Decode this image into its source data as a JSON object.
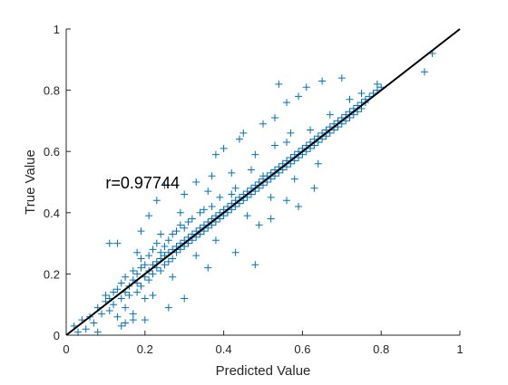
{
  "chart_data": {
    "type": "scatter",
    "title": "",
    "xlabel": "Predicted Value",
    "ylabel": "True Value",
    "xlim": [
      0,
      1
    ],
    "ylim": [
      0,
      1
    ],
    "xticks": [
      "0",
      "0.2",
      "0.4",
      "0.6",
      "0.8",
      "1"
    ],
    "yticks": [
      "0",
      "0.2",
      "0.4",
      "0.6",
      "0.8",
      "1"
    ],
    "grid": false,
    "legend": "none",
    "marker": "plus",
    "annotation": "r=0.97744",
    "colors": {
      "points": "#0072BD",
      "fit_line": "#000000",
      "axes": "#262626"
    },
    "fit_line": {
      "x": [
        0,
        1
      ],
      "y": [
        0,
        1
      ]
    },
    "series": [
      {
        "name": "",
        "points": [
          [
            0.02,
            0.03
          ],
          [
            0.03,
            0.01
          ],
          [
            0.04,
            0.05
          ],
          [
            0.05,
            0.02
          ],
          [
            0.06,
            0.06
          ],
          [
            0.07,
            0.04
          ],
          [
            0.08,
            0.01
          ],
          [
            0.08,
            0.09
          ],
          [
            0.09,
            0.07
          ],
          [
            0.1,
            0.11
          ],
          [
            0.1,
            0.13
          ],
          [
            0.11,
            0.08
          ],
          [
            0.11,
            0.12
          ],
          [
            0.12,
            0.14
          ],
          [
            0.12,
            0.1
          ],
          [
            0.13,
            0.06
          ],
          [
            0.13,
            0.15
          ],
          [
            0.14,
            0.12
          ],
          [
            0.14,
            0.17
          ],
          [
            0.15,
            0.14
          ],
          [
            0.15,
            0.09
          ],
          [
            0.15,
            0.19
          ],
          [
            0.16,
            0.16
          ],
          [
            0.16,
            0.13
          ],
          [
            0.17,
            0.18
          ],
          [
            0.17,
            0.21
          ],
          [
            0.17,
            0.07
          ],
          [
            0.18,
            0.17
          ],
          [
            0.18,
            0.14
          ],
          [
            0.18,
            0.2
          ],
          [
            0.19,
            0.22
          ],
          [
            0.19,
            0.16
          ],
          [
            0.19,
            0.25
          ],
          [
            0.2,
            0.19
          ],
          [
            0.2,
            0.23
          ],
          [
            0.2,
            0.12
          ],
          [
            0.21,
            0.21
          ],
          [
            0.21,
            0.26
          ],
          [
            0.21,
            0.18
          ],
          [
            0.22,
            0.23
          ],
          [
            0.22,
            0.2
          ],
          [
            0.22,
            0.28
          ],
          [
            0.23,
            0.24
          ],
          [
            0.23,
            0.22
          ],
          [
            0.23,
            0.3
          ],
          [
            0.24,
            0.25
          ],
          [
            0.24,
            0.21
          ],
          [
            0.24,
            0.27
          ],
          [
            0.25,
            0.26
          ],
          [
            0.25,
            0.29
          ],
          [
            0.25,
            0.23
          ],
          [
            0.26,
            0.27
          ],
          [
            0.26,
            0.31
          ],
          [
            0.26,
            0.24
          ],
          [
            0.27,
            0.28
          ],
          [
            0.27,
            0.33
          ],
          [
            0.27,
            0.25
          ],
          [
            0.28,
            0.29
          ],
          [
            0.28,
            0.27
          ],
          [
            0.28,
            0.34
          ],
          [
            0.29,
            0.3
          ],
          [
            0.29,
            0.28
          ],
          [
            0.29,
            0.36
          ],
          [
            0.3,
            0.31
          ],
          [
            0.3,
            0.29
          ],
          [
            0.3,
            0.35
          ],
          [
            0.31,
            0.32
          ],
          [
            0.31,
            0.3
          ],
          [
            0.31,
            0.37
          ],
          [
            0.32,
            0.33
          ],
          [
            0.32,
            0.31
          ],
          [
            0.32,
            0.38
          ],
          [
            0.33,
            0.34
          ],
          [
            0.33,
            0.32
          ],
          [
            0.34,
            0.35
          ],
          [
            0.34,
            0.33
          ],
          [
            0.34,
            0.4
          ],
          [
            0.35,
            0.36
          ],
          [
            0.35,
            0.34
          ],
          [
            0.35,
            0.41
          ],
          [
            0.36,
            0.37
          ],
          [
            0.36,
            0.35
          ],
          [
            0.37,
            0.38
          ],
          [
            0.37,
            0.36
          ],
          [
            0.37,
            0.42
          ],
          [
            0.38,
            0.39
          ],
          [
            0.38,
            0.37
          ],
          [
            0.39,
            0.4
          ],
          [
            0.39,
            0.38
          ],
          [
            0.39,
            0.45
          ],
          [
            0.4,
            0.41
          ],
          [
            0.4,
            0.39
          ],
          [
            0.41,
            0.42
          ],
          [
            0.41,
            0.4
          ],
          [
            0.42,
            0.43
          ],
          [
            0.42,
            0.41
          ],
          [
            0.43,
            0.44
          ],
          [
            0.43,
            0.42
          ],
          [
            0.43,
            0.48
          ],
          [
            0.44,
            0.45
          ],
          [
            0.44,
            0.43
          ],
          [
            0.45,
            0.46
          ],
          [
            0.45,
            0.44
          ],
          [
            0.46,
            0.47
          ],
          [
            0.46,
            0.45
          ],
          [
            0.47,
            0.48
          ],
          [
            0.47,
            0.46
          ],
          [
            0.48,
            0.49
          ],
          [
            0.48,
            0.47
          ],
          [
            0.49,
            0.5
          ],
          [
            0.49,
            0.48
          ],
          [
            0.5,
            0.51
          ],
          [
            0.5,
            0.49
          ],
          [
            0.51,
            0.52
          ],
          [
            0.51,
            0.5
          ],
          [
            0.52,
            0.53
          ],
          [
            0.52,
            0.51
          ],
          [
            0.53,
            0.54
          ],
          [
            0.53,
            0.52
          ],
          [
            0.54,
            0.55
          ],
          [
            0.54,
            0.53
          ],
          [
            0.55,
            0.56
          ],
          [
            0.55,
            0.54
          ],
          [
            0.56,
            0.57
          ],
          [
            0.56,
            0.55
          ],
          [
            0.57,
            0.58
          ],
          [
            0.57,
            0.56
          ],
          [
            0.58,
            0.59
          ],
          [
            0.58,
            0.57
          ],
          [
            0.59,
            0.6
          ],
          [
            0.59,
            0.58
          ],
          [
            0.6,
            0.61
          ],
          [
            0.6,
            0.59
          ],
          [
            0.61,
            0.62
          ],
          [
            0.61,
            0.6
          ],
          [
            0.62,
            0.63
          ],
          [
            0.62,
            0.61
          ],
          [
            0.63,
            0.64
          ],
          [
            0.63,
            0.62
          ],
          [
            0.64,
            0.65
          ],
          [
            0.64,
            0.63
          ],
          [
            0.65,
            0.66
          ],
          [
            0.65,
            0.64
          ],
          [
            0.66,
            0.67
          ],
          [
            0.66,
            0.65
          ],
          [
            0.67,
            0.68
          ],
          [
            0.67,
            0.66
          ],
          [
            0.68,
            0.69
          ],
          [
            0.68,
            0.67
          ],
          [
            0.69,
            0.7
          ],
          [
            0.69,
            0.68
          ],
          [
            0.7,
            0.71
          ],
          [
            0.7,
            0.69
          ],
          [
            0.71,
            0.72
          ],
          [
            0.71,
            0.7
          ],
          [
            0.72,
            0.73
          ],
          [
            0.72,
            0.71
          ],
          [
            0.73,
            0.74
          ],
          [
            0.73,
            0.72
          ],
          [
            0.74,
            0.75
          ],
          [
            0.74,
            0.73
          ],
          [
            0.75,
            0.76
          ],
          [
            0.75,
            0.74
          ],
          [
            0.76,
            0.77
          ],
          [
            0.76,
            0.76
          ],
          [
            0.77,
            0.78
          ],
          [
            0.78,
            0.79
          ],
          [
            0.79,
            0.8
          ],
          [
            0.8,
            0.81
          ],
          [
            0.15,
            0.04
          ],
          [
            0.22,
            0.13
          ],
          [
            0.27,
            0.19
          ],
          [
            0.33,
            0.26
          ],
          [
            0.38,
            0.31
          ],
          [
            0.46,
            0.39
          ],
          [
            0.52,
            0.45
          ],
          [
            0.58,
            0.51
          ],
          [
            0.64,
            0.56
          ],
          [
            0.18,
            0.27
          ],
          [
            0.24,
            0.33
          ],
          [
            0.29,
            0.4
          ],
          [
            0.36,
            0.47
          ],
          [
            0.42,
            0.53
          ],
          [
            0.48,
            0.59
          ],
          [
            0.53,
            0.62
          ],
          [
            0.57,
            0.66
          ],
          [
            0.11,
            0.3
          ],
          [
            0.13,
            0.3
          ],
          [
            0.21,
            0.39
          ],
          [
            0.23,
            0.44
          ],
          [
            0.3,
            0.46
          ],
          [
            0.33,
            0.5
          ],
          [
            0.37,
            0.52
          ],
          [
            0.38,
            0.59
          ],
          [
            0.4,
            0.61
          ],
          [
            0.44,
            0.64
          ],
          [
            0.45,
            0.66
          ],
          [
            0.5,
            0.69
          ],
          [
            0.53,
            0.71
          ],
          [
            0.54,
            0.82
          ],
          [
            0.56,
            0.76
          ],
          [
            0.59,
            0.78
          ],
          [
            0.61,
            0.81
          ],
          [
            0.65,
            0.83
          ],
          [
            0.7,
            0.84
          ],
          [
            0.36,
            0.22
          ],
          [
            0.43,
            0.27
          ],
          [
            0.48,
            0.23
          ],
          [
            0.49,
            0.36
          ],
          [
            0.52,
            0.38
          ],
          [
            0.56,
            0.44
          ],
          [
            0.59,
            0.42
          ],
          [
            0.63,
            0.48
          ],
          [
            0.3,
            0.12
          ],
          [
            0.26,
            0.09
          ],
          [
            0.2,
            0.05
          ],
          [
            0.17,
            0.05
          ],
          [
            0.14,
            0.03
          ],
          [
            0.25,
            0.49
          ],
          [
            0.19,
            0.34
          ],
          [
            0.42,
            0.46
          ],
          [
            0.47,
            0.54
          ],
          [
            0.5,
            0.52
          ],
          [
            0.56,
            0.63
          ],
          [
            0.62,
            0.67
          ],
          [
            0.67,
            0.72
          ],
          [
            0.72,
            0.77
          ],
          [
            0.75,
            0.79
          ],
          [
            0.79,
            0.82
          ],
          [
            0.91,
            0.86
          ],
          [
            0.93,
            0.92
          ]
        ]
      }
    ]
  }
}
